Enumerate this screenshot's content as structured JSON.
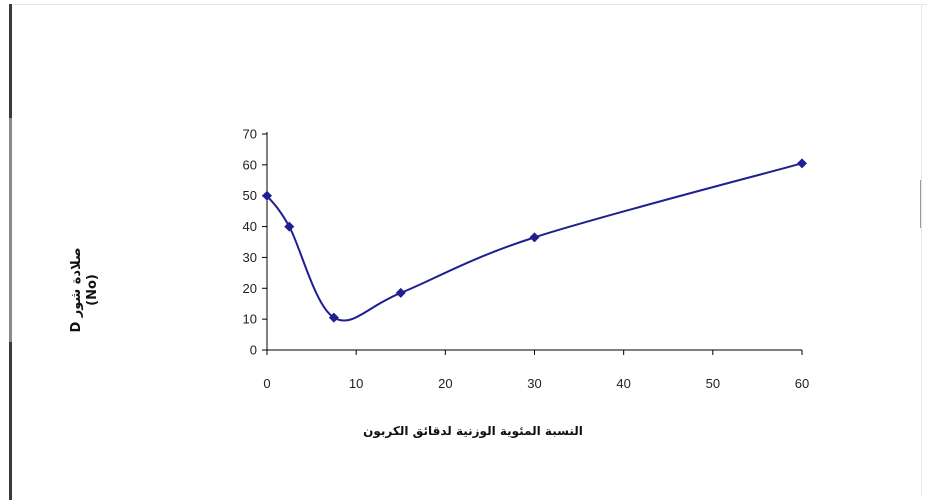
{
  "chart_data": {
    "type": "line",
    "title": "",
    "xlabel": "النسبة المئوية الوزنية لدقائق الكربون",
    "ylabel": [
      "D صلادة شور",
      "(No)"
    ],
    "x_ticks": [
      "0",
      "10",
      "20",
      "30",
      "40",
      "50",
      "60"
    ],
    "y_ticks": [
      "0",
      "10",
      "20",
      "30",
      "40",
      "50",
      "60",
      "70"
    ],
    "xlim": [
      0,
      60
    ],
    "ylim": [
      0,
      70
    ],
    "grid": false,
    "legend": "none",
    "series": [
      {
        "x": [
          0,
          2.5,
          7.5,
          15,
          30,
          60
        ],
        "y": [
          50,
          40,
          10.5,
          18.5,
          36.5,
          60.5
        ],
        "color": "#1f1f8f",
        "marker": "diamond",
        "smooth": true
      }
    ]
  }
}
